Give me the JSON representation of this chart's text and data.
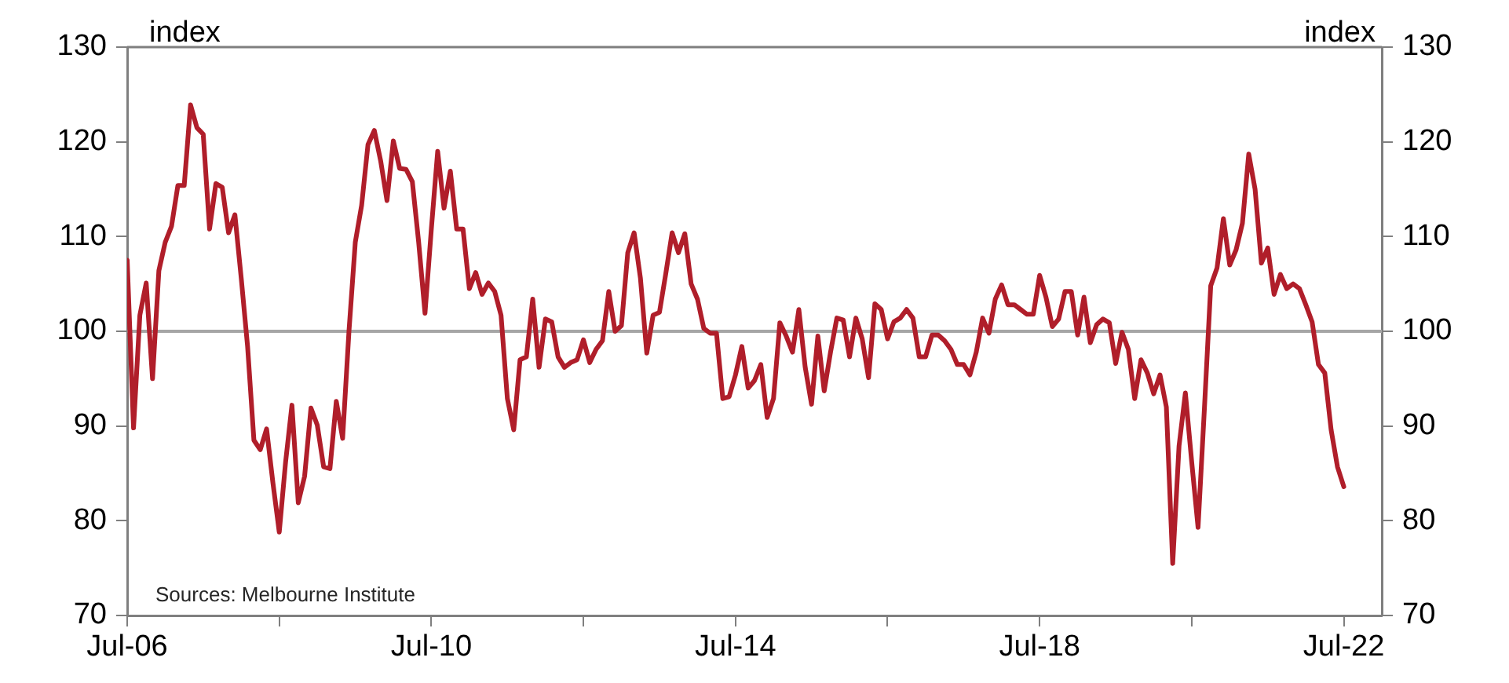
{
  "chart_data": {
    "type": "line",
    "ylabel": "index",
    "y2label": "index",
    "annotations": [
      "Sources: Melbourne Institute"
    ],
    "x": [
      "2006-07",
      "2006-08",
      "2006-09",
      "2006-10",
      "2006-11",
      "2006-12",
      "2007-01",
      "2007-02",
      "2007-03",
      "2007-04",
      "2007-05",
      "2007-06",
      "2007-07",
      "2007-08",
      "2007-09",
      "2007-10",
      "2007-11",
      "2007-12",
      "2008-01",
      "2008-02",
      "2008-03",
      "2008-04",
      "2008-05",
      "2008-06",
      "2008-07",
      "2008-08",
      "2008-09",
      "2008-10",
      "2008-11",
      "2008-12",
      "2009-01",
      "2009-02",
      "2009-03",
      "2009-04",
      "2009-05",
      "2009-06",
      "2009-07",
      "2009-08",
      "2009-09",
      "2009-10",
      "2009-11",
      "2009-12",
      "2010-01",
      "2010-02",
      "2010-03",
      "2010-04",
      "2010-05",
      "2010-06",
      "2010-07",
      "2010-08",
      "2010-09",
      "2010-10",
      "2010-11",
      "2010-12",
      "2011-01",
      "2011-02",
      "2011-03",
      "2011-04",
      "2011-05",
      "2011-06",
      "2011-07",
      "2011-08",
      "2011-09",
      "2011-10",
      "2011-11",
      "2011-12",
      "2012-01",
      "2012-02",
      "2012-03",
      "2012-04",
      "2012-05",
      "2012-06",
      "2012-07",
      "2012-08",
      "2012-09",
      "2012-10",
      "2012-11",
      "2012-12",
      "2013-01",
      "2013-02",
      "2013-03",
      "2013-04",
      "2013-05",
      "2013-06",
      "2013-07",
      "2013-08",
      "2013-09",
      "2013-10",
      "2013-11",
      "2013-12",
      "2014-01",
      "2014-02",
      "2014-03",
      "2014-04",
      "2014-05",
      "2014-06",
      "2014-07",
      "2014-08",
      "2014-09",
      "2014-10",
      "2014-11",
      "2014-12",
      "2015-01",
      "2015-02",
      "2015-03",
      "2015-04",
      "2015-05",
      "2015-06",
      "2015-07",
      "2015-08",
      "2015-09",
      "2015-10",
      "2015-11",
      "2015-12",
      "2016-01",
      "2016-02",
      "2016-03",
      "2016-04",
      "2016-05",
      "2016-06",
      "2016-07",
      "2016-08",
      "2016-09",
      "2016-10",
      "2016-11",
      "2016-12",
      "2017-01",
      "2017-02",
      "2017-03",
      "2017-04",
      "2017-05",
      "2017-06",
      "2017-07",
      "2017-08",
      "2017-09",
      "2017-10",
      "2017-11",
      "2017-12",
      "2018-01",
      "2018-02",
      "2018-03",
      "2018-04",
      "2018-05",
      "2018-06",
      "2018-07",
      "2018-08",
      "2018-09",
      "2018-10",
      "2018-11",
      "2018-12",
      "2019-01",
      "2019-02",
      "2019-03",
      "2019-04",
      "2019-05",
      "2019-06",
      "2019-07",
      "2019-08",
      "2019-09",
      "2019-10",
      "2019-11",
      "2019-12",
      "2020-01",
      "2020-02",
      "2020-03",
      "2020-04",
      "2020-05",
      "2020-06",
      "2020-07",
      "2020-08",
      "2020-09",
      "2020-10",
      "2020-11",
      "2020-12",
      "2021-01",
      "2021-02",
      "2021-03",
      "2021-04",
      "2021-05",
      "2021-06",
      "2021-07",
      "2021-08",
      "2021-09",
      "2021-10",
      "2021-11",
      "2021-12",
      "2022-01",
      "2022-02",
      "2022-03",
      "2022-04",
      "2022-05",
      "2022-06",
      "2022-07"
    ],
    "series": [
      {
        "color": "#b01e2a",
        "values": [
          107.5,
          89.8,
          101.7,
          105.1,
          95,
          106.4,
          109.4,
          111.1,
          115.4,
          115.4,
          123.9,
          121.5,
          120.8,
          110.8,
          115.6,
          115.2,
          110.4,
          112.3,
          105.6,
          98.4,
          88.5,
          87.5,
          89.7,
          84,
          78.8,
          86.2,
          92.2,
          81.9,
          84.7,
          91.9,
          90.1,
          85.7,
          85.5,
          92.6,
          88.7,
          100,
          109.4,
          113.3,
          119.7,
          121.2,
          118,
          113.8,
          120.1,
          117.2,
          117.1,
          115.8,
          109.4,
          101.9,
          110.8,
          119,
          113,
          116.9,
          110.8,
          110.8,
          104.5,
          106.2,
          103.9,
          105.1,
          104.2,
          101.7,
          92.9,
          89.6,
          97,
          97.3,
          103.4,
          96.2,
          101.3,
          101,
          97.3,
          96.2,
          96.7,
          97,
          99.1,
          96.7,
          98.1,
          99,
          104.2,
          100,
          100.6,
          108.3,
          110.4,
          105.6,
          97.7,
          101.7,
          102,
          106.1,
          110.4,
          108.3,
          110.3,
          105,
          103.4,
          100.3,
          99.8,
          99.8,
          92.9,
          93.1,
          95.4,
          98.4,
          94,
          94.8,
          96.5,
          90.9,
          92.9,
          100.9,
          99.5,
          97.8,
          102.3,
          96.2,
          92.3,
          99.5,
          93.7,
          97.8,
          101.4,
          101.2,
          97.3,
          101.4,
          99.2,
          95.1,
          102.9,
          102.3,
          99.2,
          101,
          101.4,
          102.3,
          101.4,
          97.3,
          97.3,
          99.6,
          99.6,
          99,
          98.1,
          96.5,
          96.5,
          95.4,
          97.8,
          101.4,
          99.8,
          103.4,
          104.9,
          102.8,
          102.8,
          102.3,
          101.8,
          101.8,
          105.9,
          103.6,
          100.5,
          101.3,
          104.2,
          104.2,
          99.6,
          103.6,
          98.8,
          100.7,
          101.3,
          100.9,
          96.6,
          99.9,
          98.1,
          92.9,
          97,
          95.6,
          93.4,
          95.4,
          92,
          75.5,
          87.9,
          93.5,
          86.2,
          79.3,
          91.8,
          104.8,
          106.7,
          111.9,
          107,
          108.6,
          111.4,
          118.7,
          115,
          107.2,
          108.8,
          103.9,
          106,
          104.5,
          105,
          104.5,
          102.8,
          101,
          96.5,
          95.6,
          89.6,
          85.7,
          83.6
        ]
      }
    ],
    "xlim": [
      "2006-07",
      "2023-01"
    ],
    "xticks": [
      {
        "value": "2006-07",
        "label": "Jul-06"
      },
      {
        "value": "2008-07",
        "label": null
      },
      {
        "value": "2010-07",
        "label": "Jul-10"
      },
      {
        "value": "2012-07",
        "label": null
      },
      {
        "value": "2014-07",
        "label": "Jul-14"
      },
      {
        "value": "2016-07",
        "label": null
      },
      {
        "value": "2018-07",
        "label": "Jul-18"
      },
      {
        "value": "2020-07",
        "label": null
      },
      {
        "value": "2022-07",
        "label": "Jul-22"
      }
    ],
    "ylim": [
      70,
      130
    ],
    "yticks": [
      70,
      80,
      90,
      100,
      110,
      120,
      130
    ],
    "y2lim": [
      70,
      130
    ],
    "y2ticks": [
      70,
      80,
      90,
      100,
      110,
      120,
      130
    ],
    "ref_lines": [
      {
        "axis": "y",
        "value": 100,
        "color": "#a6a6a6"
      }
    ],
    "grid": false,
    "legend": false,
    "marker": "none",
    "line_style": "solid"
  }
}
